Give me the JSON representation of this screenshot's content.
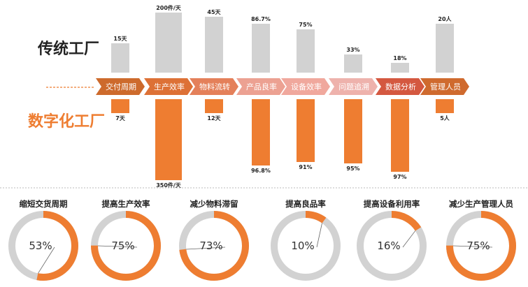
{
  "chart_data": [
    {
      "type": "bar",
      "categories": [
        "交付周期",
        "生产效率",
        "物料流转",
        "产品良率",
        "设备效率",
        "问题追溯",
        "数据分析",
        "管理人员"
      ],
      "series": [
        {
          "name": "传统工厂",
          "values": [
            15,
            200,
            45,
            86.7,
            75,
            33,
            18,
            20
          ],
          "labels": [
            "15天",
            "200件/天",
            "45天",
            "86.7%",
            "75%",
            "33%",
            "18%",
            "20人"
          ],
          "color": "#d2d2d2"
        },
        {
          "name": "数字化工厂",
          "values": [
            7,
            350,
            12,
            96.8,
            91,
            95,
            97,
            5
          ],
          "labels": [
            "7天",
            "350件/天",
            "12天",
            "96.8%",
            "91%",
            "95%",
            "97%",
            "5人"
          ],
          "color": "#ee7d31"
        }
      ],
      "arrow_colors": [
        "#cd6a2c",
        "#dd7136",
        "#e4805a",
        "#eca192",
        "#f0a89d",
        "#eeb2ac",
        "#d45840",
        "#cf6a2e"
      ]
    },
    {
      "type": "pie",
      "style": "donut",
      "items": [
        {
          "title": "缩短交货周期",
          "value": 53,
          "label": "53%"
        },
        {
          "title": "提高生产效率",
          "value": 75,
          "label": "75%"
        },
        {
          "title": "减少物料滞留",
          "value": 73,
          "label": "73%"
        },
        {
          "title": "提高良品率",
          "value": 10,
          "label": "10%"
        },
        {
          "title": "提高设备利用率",
          "value": 16,
          "label": "16%"
        },
        {
          "title": "减少生产管理人员",
          "value": 75,
          "label": "75%"
        }
      ],
      "colors": {
        "filled": "#ee7d31",
        "remaining": "#d2d2d2"
      }
    }
  ]
}
